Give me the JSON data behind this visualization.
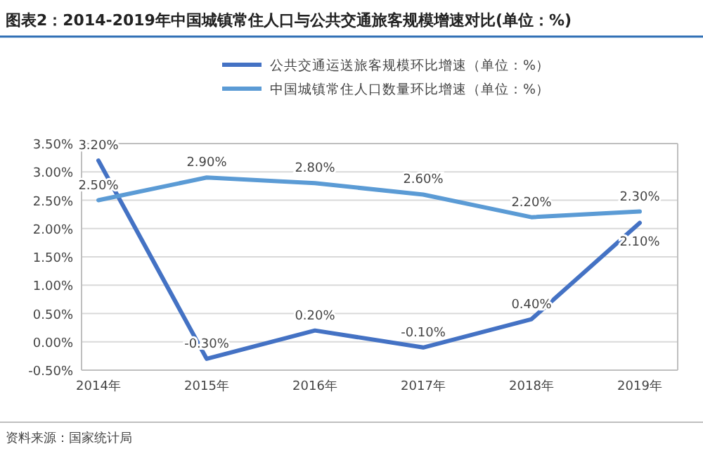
{
  "chart_data": {
    "type": "line",
    "title": "图表2：2014-2019年中国城镇常住人口与公共交通旅客规模增速对比(单位：%)",
    "categories": [
      "2014年",
      "2015年",
      "2016年",
      "2017年",
      "2018年",
      "2019年"
    ],
    "series": [
      {
        "name": "公共交通运送旅客规模环比增速（单位：%）",
        "color": "#4472c4",
        "values": [
          3.2,
          -0.3,
          0.2,
          -0.1,
          0.4,
          2.1
        ],
        "value_labels": [
          "3.20%",
          "-0.30%",
          "0.20%",
          "-0.10%",
          "0.40%",
          "2.10%"
        ]
      },
      {
        "name": "中国城镇常住人口数量环比增速（单位：%）",
        "color": "#5b9bd5",
        "values": [
          2.5,
          2.9,
          2.8,
          2.6,
          2.2,
          2.3
        ],
        "value_labels": [
          "2.50%",
          "2.90%",
          "2.80%",
          "2.60%",
          "2.20%",
          "2.30%"
        ]
      }
    ],
    "ylim": [
      -0.5,
      3.5
    ],
    "yticks": [
      {
        "value": -0.5,
        "label": "-0.50%"
      },
      {
        "value": 0,
        "label": "0.00%"
      },
      {
        "value": 0.5,
        "label": "0.50%"
      },
      {
        "value": 1,
        "label": "1.00%"
      },
      {
        "value": 1.5,
        "label": "1.50%"
      },
      {
        "value": 2,
        "label": "2.00%"
      },
      {
        "value": 2.5,
        "label": "2.50%"
      },
      {
        "value": 3,
        "label": "3.00%"
      },
      {
        "value": 3.5,
        "label": "3.50%"
      }
    ],
    "grid": "y",
    "legend": "top",
    "marker": "none",
    "line_style": "solid",
    "annotations": [
      "资料来源：国家统计局"
    ]
  }
}
